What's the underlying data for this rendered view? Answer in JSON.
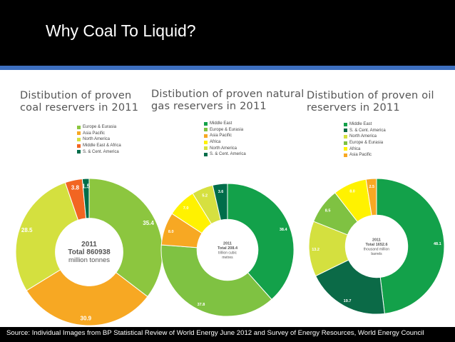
{
  "slide": {
    "title": "Why Coal To Liquid?",
    "source": "Source: Individual Images from  BP Statistical Review of World Energy June 2012 and Survey of Energy Resources, World Energy Council"
  },
  "chart_data": [
    {
      "type": "pie",
      "title": "Distibution of proven coal reservers in 2011",
      "title_lines": [
        "Distibution of proven",
        "coal reservers in 2011"
      ],
      "legend": [
        "Europe & Eurasia",
        "Asia Pacific",
        "North America",
        "Middle East & Africa",
        "S. & Cent. America"
      ],
      "series": [
        {
          "name": "Europe & Eurasia",
          "value": 35.4,
          "label": "35.4",
          "color": "#8cc63f"
        },
        {
          "name": "Asia Pacific",
          "value": 30.9,
          "label": "30.9",
          "color": "#f7a823"
        },
        {
          "name": "North America",
          "value": 28.5,
          "label": "28.5",
          "color": "#d4e03f"
        },
        {
          "name": "Middle East & Africa",
          "value": 3.8,
          "label": "3.8",
          "color": "#f26522"
        },
        {
          "name": "S. & Cent. America",
          "value": 1.5,
          "label": "1.5",
          "color": "#006d4a"
        }
      ],
      "center": {
        "line1": "2011",
        "line2": "Total 860938",
        "line3": "million tonnes"
      }
    },
    {
      "type": "pie",
      "title": "Distibution of proven natural gas reservers in 2011",
      "title_lines": [
        "Distibution of proven natural",
        "gas reservers in 2011"
      ],
      "legend": [
        "Middle East",
        "Europe & Eurasia",
        "Asia Pacific",
        "Africa",
        "North America",
        "S. & Cent. America"
      ],
      "series": [
        {
          "name": "Middle East",
          "value": 38.4,
          "label": "38.4",
          "color": "#13a14a"
        },
        {
          "name": "Europe & Eurasia",
          "value": 37.8,
          "label": "37.8",
          "color": "#7fc242"
        },
        {
          "name": "Asia Pacific",
          "value": 8.0,
          "label": "8.0",
          "color": "#f7a823"
        },
        {
          "name": "Africa",
          "value": 7.0,
          "label": "7.0",
          "color": "#fff200"
        },
        {
          "name": "North America",
          "value": 5.2,
          "label": "5.2",
          "color": "#d6e040"
        },
        {
          "name": "S. & Cent. America",
          "value": 3.6,
          "label": "3.6",
          "color": "#006d4a"
        }
      ],
      "center": {
        "line1": "2011",
        "line2": "Total 208.4",
        "line3": "trillion cubic",
        "line4": "metres"
      }
    },
    {
      "type": "pie",
      "title": "Distibution of proven oil reservers in 2011",
      "title_lines": [
        "Distibution of proven oil",
        "reservers in 2011"
      ],
      "legend": [
        "Middle East",
        "S. & Cent. America",
        "North America",
        "Europe & Eurasia",
        "Africa",
        "Asia Pacific"
      ],
      "series": [
        {
          "name": "Middle East",
          "value": 48.1,
          "label": "48.1",
          "color": "#13a14a"
        },
        {
          "name": "S. & Cent. America",
          "value": 19.7,
          "label": "19.7",
          "color": "#0b6a47"
        },
        {
          "name": "North America",
          "value": 13.2,
          "label": "13.2",
          "color": "#d4e03f"
        },
        {
          "name": "Europe & Eurasia",
          "value": 8.5,
          "label": "8.5",
          "color": "#7fc242"
        },
        {
          "name": "Africa",
          "value": 8.0,
          "label": "8.0",
          "color": "#fff200"
        },
        {
          "name": "Asia Pacific",
          "value": 2.5,
          "label": "2.5",
          "color": "#f7a823"
        }
      ],
      "center": {
        "line1": "2011",
        "line2": "Total 1652.6",
        "line3": "thousand million",
        "line4": "barrels"
      }
    }
  ]
}
